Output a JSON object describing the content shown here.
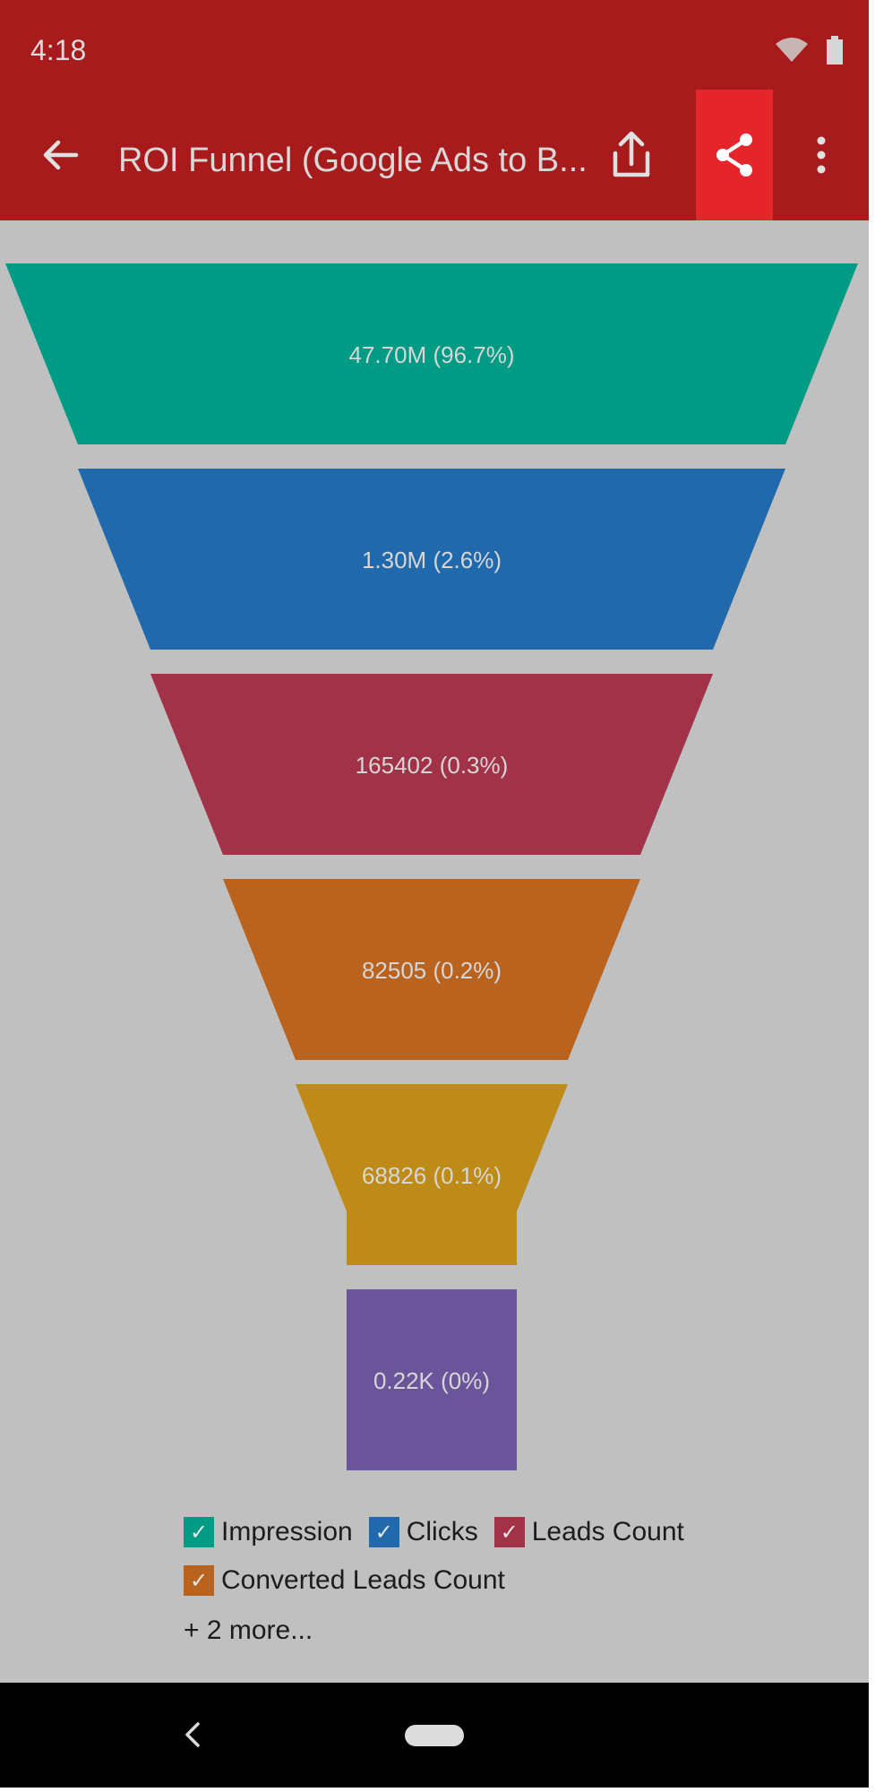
{
  "status_bar": {
    "time": "4:18"
  },
  "toolbar": {
    "title": "ROI Funnel (Google Ads to B...",
    "icons": [
      "back-arrow-icon",
      "export-icon",
      "share-icon",
      "more-vert-icon"
    ]
  },
  "colors": {
    "appbar": "#a81b1c",
    "share_highlight": "#e4262b",
    "background": "#c0c0c0"
  },
  "chart_data": {
    "type": "funnel",
    "stages": [
      {
        "name": "Impression",
        "value": 47700000,
        "label": "47.70M (96.7%)",
        "percent": 96.7,
        "color": "#009b85"
      },
      {
        "name": "Clicks",
        "value": 1300000,
        "label": "1.30M (2.6%)",
        "percent": 2.6,
        "color": "#1f69ac"
      },
      {
        "name": "Leads Count",
        "value": 165402,
        "label": "165402 (0.3%)",
        "percent": 0.3,
        "color": "#a23248"
      },
      {
        "name": "Converted Leads Count",
        "value": 82505,
        "label": "82505 (0.2%)",
        "percent": 0.2,
        "color": "#b9631f"
      },
      {
        "name": "",
        "value": 68826,
        "label": "68826 (0.1%)",
        "percent": 0.1,
        "color": "#be8b18"
      },
      {
        "name": "",
        "value": 220,
        "label": "0.22K (0%)",
        "percent": 0,
        "color": "#6b559a"
      }
    ],
    "legend_more": "+ 2 more..."
  },
  "legend": {
    "items": [
      {
        "label": "Impression",
        "color": "#009b85"
      },
      {
        "label": "Clicks",
        "color": "#1f69ac"
      },
      {
        "label": "Leads Count",
        "color": "#a23248"
      },
      {
        "label": "Converted Leads Count",
        "color": "#b9631f"
      }
    ],
    "check": "✓",
    "more": "+ 2 more..."
  }
}
